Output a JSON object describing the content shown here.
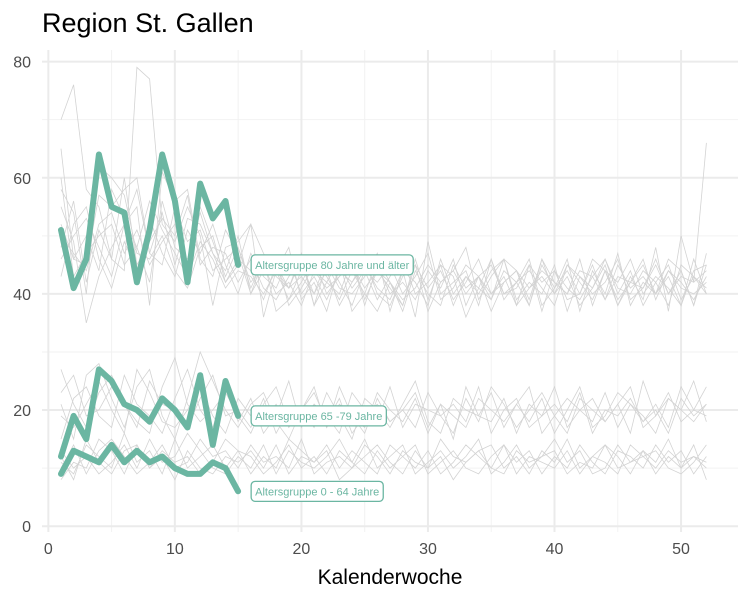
{
  "chart_data": {
    "type": "line",
    "title": "Region St. Gallen",
    "subtitle": "",
    "xlabel": "Kalenderwoche",
    "ylabel": "",
    "xlim": [
      -0.5,
      54.5
    ],
    "ylim": [
      -1,
      82
    ],
    "x_ticks": [
      0,
      10,
      20,
      30,
      40,
      50
    ],
    "y_ticks": [
      0,
      20,
      40,
      60,
      80
    ],
    "grid": true,
    "highlight_color": "#6bb6a2",
    "background_color": "#d3d3d3",
    "series": [
      {
        "name": "Altersgruppe 80 Jahre und älter",
        "x": [
          1,
          2,
          3,
          4,
          5,
          6,
          7,
          8,
          9,
          10,
          11,
          12,
          13,
          14,
          15
        ],
        "values": [
          51,
          41,
          46,
          64,
          55,
          54,
          42,
          51,
          64,
          56,
          42,
          59,
          53,
          56,
          45
        ]
      },
      {
        "name": "Altersgruppe 65 -79 Jahre",
        "x": [
          1,
          2,
          3,
          4,
          5,
          6,
          7,
          8,
          9,
          10,
          11,
          12,
          13,
          14,
          15
        ],
        "values": [
          12,
          19,
          15,
          27,
          25,
          21,
          20,
          18,
          22,
          20,
          17,
          26,
          14,
          25,
          19
        ]
      },
      {
        "name": "Altersgruppe 0 - 64 Jahre",
        "x": [
          1,
          2,
          3,
          4,
          5,
          6,
          7,
          8,
          9,
          10,
          11,
          12,
          13,
          14,
          15
        ],
        "values": [
          9,
          13,
          12,
          11,
          14,
          11,
          13,
          11,
          12,
          10,
          9,
          9,
          11,
          10,
          6
        ]
      }
    ],
    "background_series": [
      [
        70,
        76,
        58,
        55,
        46,
        44,
        79,
        77,
        52,
        49,
        55,
        50,
        38,
        48,
        49,
        52,
        36,
        44,
        41,
        47,
        38,
        45,
        41,
        40,
        43,
        47,
        37,
        44,
        36,
        49,
        40,
        42,
        44,
        38,
        46,
        40,
        41,
        45,
        37,
        44,
        39,
        40,
        46,
        44,
        38,
        43,
        39,
        48,
        37,
        50,
        42,
        66
      ],
      [
        65,
        46,
        45,
        57,
        55,
        58,
        60,
        47,
        54,
        45,
        53,
        52,
        47,
        44,
        50,
        40,
        46,
        37,
        39,
        44,
        44,
        42,
        46,
        37,
        40,
        37,
        42,
        38,
        46,
        39,
        45,
        43,
        36,
        41,
        46,
        39,
        42,
        38,
        45,
        41,
        46,
        37,
        44,
        40,
        47,
        38,
        42,
        40,
        46,
        44,
        38,
        45
      ],
      [
        58,
        54,
        40,
        62,
        60,
        57,
        47,
        46,
        50,
        44,
        41,
        48,
        50,
        42,
        45,
        52,
        47,
        43,
        41,
        46,
        38,
        42,
        40,
        46,
        39,
        44,
        41,
        38,
        45,
        37,
        42,
        44,
        48,
        39,
        43,
        46,
        38,
        41,
        44,
        42,
        40,
        46,
        38,
        44,
        39,
        42,
        45,
        40,
        43,
        38,
        46,
        40
      ],
      [
        55,
        49,
        35,
        43,
        48,
        52,
        55,
        38,
        61,
        56,
        58,
        46,
        43,
        51,
        47,
        40,
        44,
        46,
        38,
        41,
        45,
        43,
        39,
        44,
        40,
        46,
        42,
        37,
        44,
        40,
        38,
        45,
        41,
        43,
        37,
        42,
        44,
        39,
        46,
        40,
        43,
        38,
        41,
        45,
        38,
        42,
        46,
        39,
        44,
        41,
        40,
        42
      ],
      [
        52,
        46,
        50,
        44,
        58,
        53,
        48,
        56,
        51,
        47,
        43,
        49,
        46,
        41,
        44,
        43,
        40,
        44,
        48,
        39,
        42,
        37,
        45,
        41,
        44,
        39,
        43,
        46,
        40,
        42,
        45,
        38,
        43,
        40,
        44,
        46,
        39,
        42,
        40,
        45,
        37,
        43,
        41,
        46,
        40,
        44,
        38,
        42,
        45,
        39,
        43,
        41
      ],
      [
        48,
        56,
        42,
        51,
        46,
        60,
        45,
        49,
        53,
        50,
        57,
        45,
        48,
        47,
        42,
        46,
        41,
        39,
        43,
        45,
        40,
        44,
        38,
        42,
        45,
        41,
        39,
        44,
        42,
        38,
        46,
        40,
        43,
        41,
        39,
        44,
        42,
        46,
        38,
        41,
        44,
        40,
        45,
        39,
        43,
        42,
        41,
        46,
        40,
        44,
        38,
        47
      ],
      [
        46,
        50,
        53,
        48,
        43,
        52,
        58,
        47,
        45,
        55,
        49,
        51,
        44,
        46,
        48,
        42,
        45,
        40,
        42,
        38,
        44,
        41,
        43,
        46,
        38,
        45,
        40,
        42,
        39,
        44,
        41,
        46,
        38,
        43,
        45,
        40,
        42,
        44,
        41,
        38,
        45,
        43,
        40,
        42,
        46,
        39,
        41,
        45,
        40,
        43,
        42,
        44
      ],
      [
        60,
        43,
        47,
        50,
        52,
        45,
        48,
        42,
        56,
        48,
        46,
        54,
        47,
        42,
        46,
        44,
        39,
        45,
        41,
        43,
        40,
        46,
        42,
        38,
        44,
        42,
        45,
        40,
        43,
        47,
        39,
        41,
        45,
        43,
        40,
        42,
        44,
        38,
        46,
        42,
        40,
        44,
        43,
        39,
        45,
        41,
        43,
        40,
        44,
        42,
        39,
        43
      ],
      [
        43,
        52,
        55,
        46,
        41,
        49,
        44,
        53,
        47,
        43,
        51,
        47,
        52,
        45,
        40,
        47,
        43,
        41,
        46,
        40,
        43,
        39,
        44,
        42,
        46,
        40,
        38,
        43,
        45,
        41,
        44,
        39,
        42,
        46,
        40,
        43,
        38,
        45,
        42,
        44,
        41,
        39,
        43,
        46,
        41,
        40,
        44,
        42,
        38,
        45,
        43,
        40
      ],
      [
        50,
        47,
        44,
        52,
        54,
        47,
        51,
        45,
        49,
        52,
        44,
        55,
        49,
        43,
        48,
        41,
        46,
        44,
        39,
        42,
        46,
        40,
        43,
        45,
        41,
        44,
        42,
        39,
        41,
        45,
        42,
        44,
        40,
        43,
        39,
        46,
        44,
        41,
        43,
        40,
        45,
        42,
        39,
        44,
        42,
        46,
        40,
        43,
        41,
        38,
        44,
        45
      ],
      [
        21,
        15,
        26,
        28,
        22,
        17,
        24,
        27,
        19,
        15,
        22,
        30,
        25,
        20,
        17,
        21,
        23,
        18,
        15,
        20,
        24,
        17,
        21,
        19,
        16,
        22,
        18,
        20,
        23,
        17,
        21,
        15,
        24,
        19,
        18,
        22,
        16,
        21,
        19,
        24,
        17,
        20,
        22,
        18,
        21,
        16,
        25,
        19,
        23,
        18,
        20,
        24
      ],
      [
        27,
        21,
        17,
        23,
        26,
        21,
        18,
        16,
        24,
        29,
        21,
        18,
        20,
        23,
        19,
        16,
        21,
        24,
        18,
        20,
        17,
        23,
        19,
        15,
        22,
        20,
        17,
        21,
        25,
        18,
        16,
        22,
        20,
        19,
        23,
        17,
        21,
        18,
        22,
        16,
        20,
        24,
        17,
        19,
        23,
        21,
        18,
        20,
        16,
        22,
        19,
        21
      ],
      [
        15,
        22,
        24,
        19,
        17,
        26,
        21,
        19,
        16,
        22,
        27,
        20,
        17,
        24,
        18,
        22,
        16,
        19,
        25,
        17,
        21,
        19,
        16,
        23,
        20,
        18,
        24,
        17,
        21,
        20,
        19,
        16,
        22,
        18,
        24,
        21,
        17,
        20,
        23,
        19,
        16,
        22,
        20,
        18,
        21,
        24,
        17,
        19,
        22,
        20,
        18,
        21
      ],
      [
        19,
        17,
        21,
        25,
        20,
        16,
        27,
        23,
        18,
        17,
        20,
        24,
        19,
        16,
        22,
        19,
        18,
        21,
        17,
        20,
        23,
        18,
        22,
        16,
        19,
        21,
        18,
        20,
        17,
        23,
        19,
        21,
        18,
        24,
        16,
        20,
        22,
        17,
        19,
        21,
        18,
        23,
        16,
        20,
        19,
        22,
        18,
        21,
        17,
        24,
        20,
        19
      ],
      [
        23,
        26,
        19,
        20,
        24,
        21,
        17,
        25,
        21,
        20,
        17,
        22,
        26,
        19,
        20,
        17,
        22,
        16,
        20,
        18,
        21,
        17,
        24,
        19,
        17,
        23,
        20,
        18,
        22,
        16,
        21,
        19,
        17,
        22,
        20,
        18,
        21,
        24,
        16,
        19,
        22,
        20,
        18,
        23,
        17,
        21,
        19,
        16,
        22,
        20,
        25,
        18
      ],
      [
        11,
        9,
        14,
        12,
        10,
        16,
        11,
        13,
        9,
        15,
        10,
        12,
        14,
        10,
        13,
        12,
        9,
        11,
        14,
        10,
        12,
        9,
        13,
        11,
        15,
        10,
        12,
        14,
        9,
        11,
        13,
        10,
        12,
        15,
        9,
        11,
        14,
        10,
        12,
        13,
        9,
        11,
        10,
        14,
        12,
        9,
        13,
        11,
        15,
        10,
        12,
        11
      ],
      [
        8,
        11,
        10,
        15,
        13,
        9,
        14,
        10,
        12,
        8,
        13,
        10,
        9,
        12,
        11,
        13,
        10,
        14,
        9,
        12,
        11,
        13,
        8,
        10,
        12,
        14,
        11,
        9,
        13,
        10,
        12,
        8,
        11,
        13,
        10,
        14,
        9,
        12,
        11,
        10,
        13,
        9,
        12,
        14,
        10,
        11,
        13,
        9,
        12,
        10,
        14,
        8
      ],
      [
        13,
        10,
        12,
        9,
        11,
        14,
        10,
        15,
        11,
        12,
        16,
        13,
        10,
        9,
        12,
        10,
        14,
        9,
        13,
        11,
        10,
        12,
        15,
        11,
        9,
        13,
        10,
        12,
        14,
        9,
        11,
        13,
        10,
        9,
        12,
        14,
        11,
        13,
        9,
        12,
        10,
        14,
        11,
        9,
        13,
        12,
        10,
        14,
        11,
        13,
        9,
        12
      ],
      [
        10,
        14,
        9,
        13,
        15,
        12,
        9,
        11,
        14,
        10,
        11,
        15,
        12,
        13,
        10,
        14,
        11,
        12,
        10,
        15,
        9,
        11,
        12,
        10,
        14,
        12,
        9,
        13,
        11,
        10,
        15,
        12,
        11,
        13,
        14,
        10,
        12,
        9,
        13,
        11,
        15,
        10,
        12,
        11,
        9,
        14,
        12,
        10,
        13,
        11,
        12,
        10
      ],
      [
        12,
        8,
        15,
        11,
        9,
        13,
        14,
        10,
        13,
        11,
        12,
        9,
        11,
        15,
        13,
        9,
        12,
        10,
        15,
        13,
        11,
        14,
        10,
        13,
        11,
        9,
        14,
        12,
        10,
        13,
        9,
        11,
        14,
        12,
        10,
        9,
        13,
        11,
        12,
        15,
        11,
        13,
        9,
        10,
        14,
        11,
        12,
        13,
        10,
        9,
        11,
        14
      ]
    ]
  }
}
